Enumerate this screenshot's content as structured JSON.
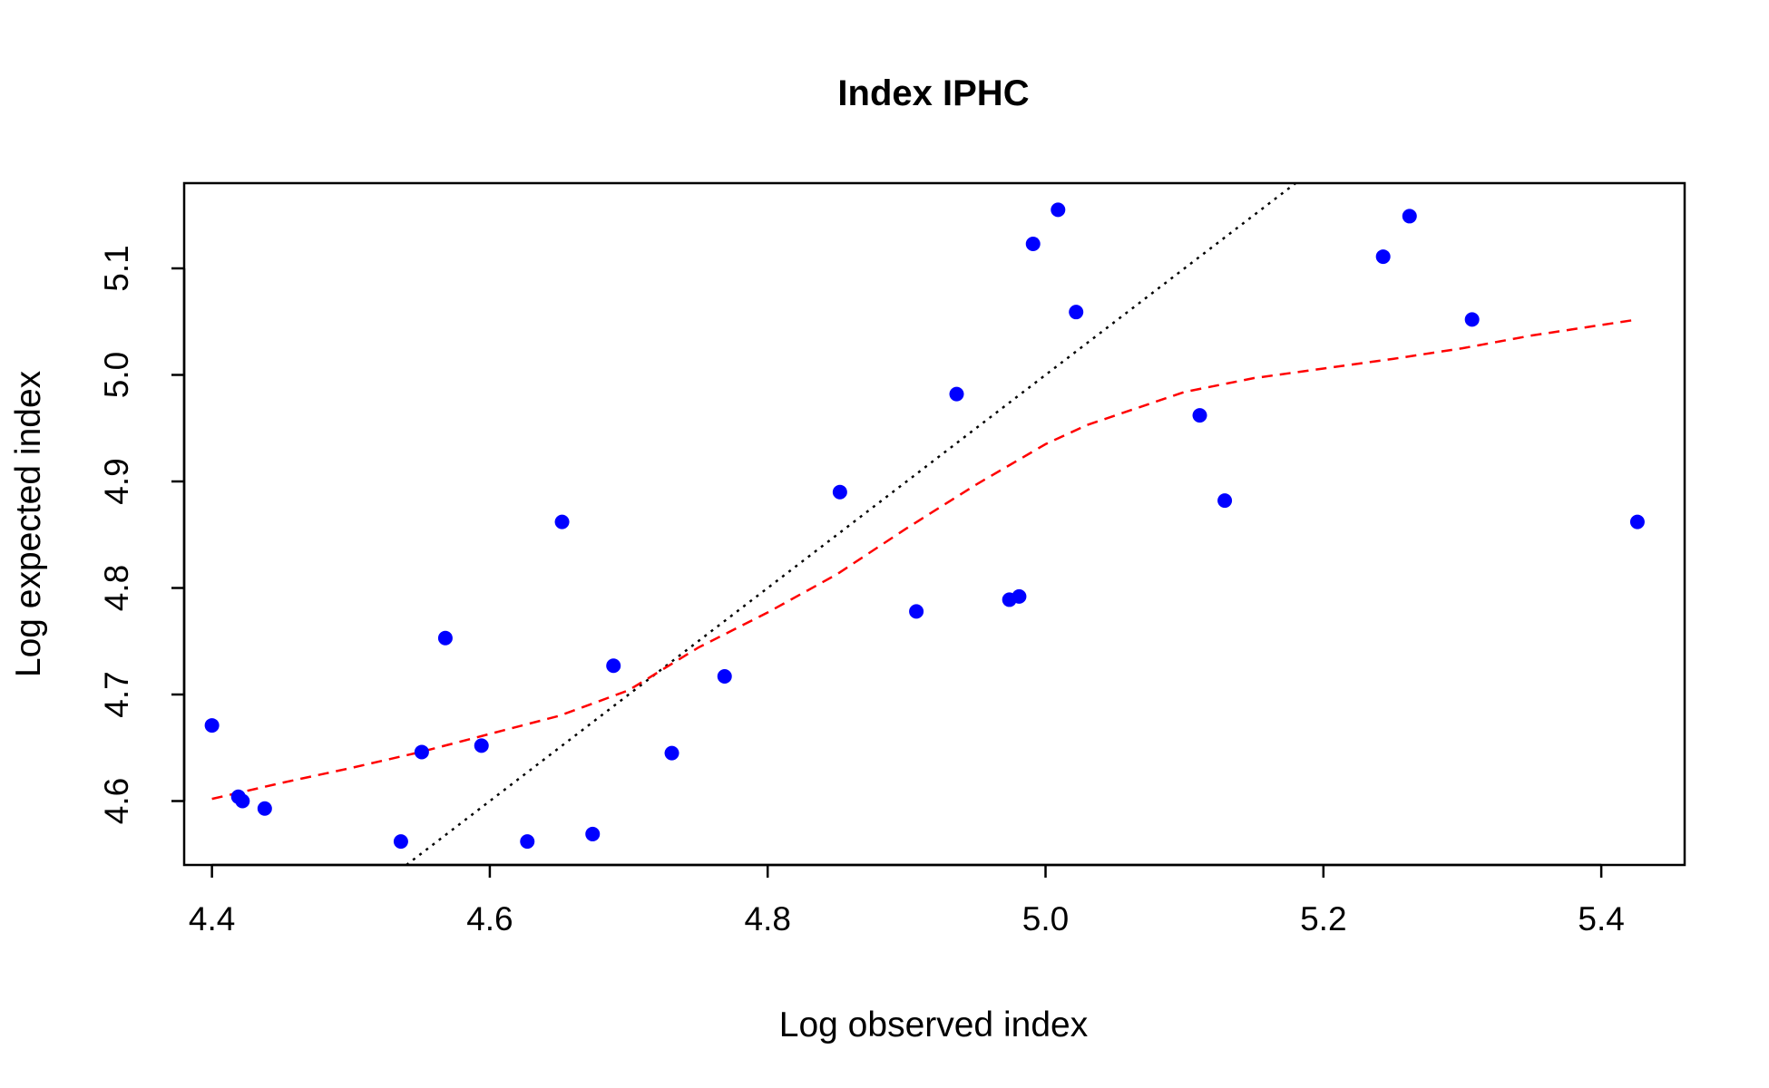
{
  "chart_data": {
    "type": "scatter",
    "title": "Index IPHC",
    "xlabel": "Log observed index",
    "ylabel": "Log expected index",
    "xlim": [
      4.38,
      5.46
    ],
    "ylim": [
      4.54,
      5.18
    ],
    "xticks": [
      4.4,
      4.6,
      4.8,
      5.0,
      5.2,
      5.4
    ],
    "xtick_labels": [
      "4.4",
      "4.6",
      "4.8",
      "5.0",
      "5.2",
      "5.4"
    ],
    "yticks": [
      4.6,
      4.7,
      4.8,
      4.9,
      5.0,
      5.1
    ],
    "ytick_labels": [
      "4.6",
      "4.7",
      "4.8",
      "4.9",
      "5.0",
      "5.1"
    ],
    "grid": false,
    "colors": {
      "points": "#0000ff",
      "smooth": "#ff0000",
      "identity": "#000000"
    },
    "points": {
      "x": [
        4.4,
        4.419,
        4.422,
        4.438,
        4.536,
        4.551,
        4.568,
        4.594,
        4.627,
        4.652,
        4.674,
        4.689,
        4.731,
        4.769,
        4.852,
        4.907,
        4.936,
        4.974,
        4.981,
        4.991,
        5.009,
        5.022,
        5.111,
        5.129,
        5.243,
        5.262,
        5.307,
        5.426
      ],
      "y": [
        4.671,
        4.604,
        4.6,
        4.593,
        4.562,
        4.646,
        4.753,
        4.652,
        4.562,
        4.862,
        4.569,
        4.727,
        4.645,
        4.717,
        4.89,
        4.778,
        4.982,
        4.789,
        4.792,
        5.123,
        5.155,
        5.059,
        4.962,
        4.882,
        5.111,
        5.149,
        5.052,
        4.862
      ]
    },
    "smooth_line": {
      "style": "dashed",
      "x": [
        4.4,
        4.45,
        4.5,
        4.55,
        4.6,
        4.65,
        4.7,
        4.75,
        4.8,
        4.85,
        4.9,
        4.95,
        5.0,
        5.03,
        5.1,
        5.15,
        5.2,
        5.25,
        5.3,
        5.35,
        5.426
      ],
      "y": [
        4.602,
        4.617,
        4.631,
        4.646,
        4.663,
        4.68,
        4.704,
        4.744,
        4.777,
        4.813,
        4.856,
        4.897,
        4.935,
        4.953,
        4.984,
        4.997,
        5.006,
        5.015,
        5.025,
        5.037,
        5.052
      ]
    },
    "identity_line": {
      "style": "dotted",
      "x": [
        4.54,
        5.18
      ],
      "y": [
        4.54,
        5.18
      ]
    }
  }
}
